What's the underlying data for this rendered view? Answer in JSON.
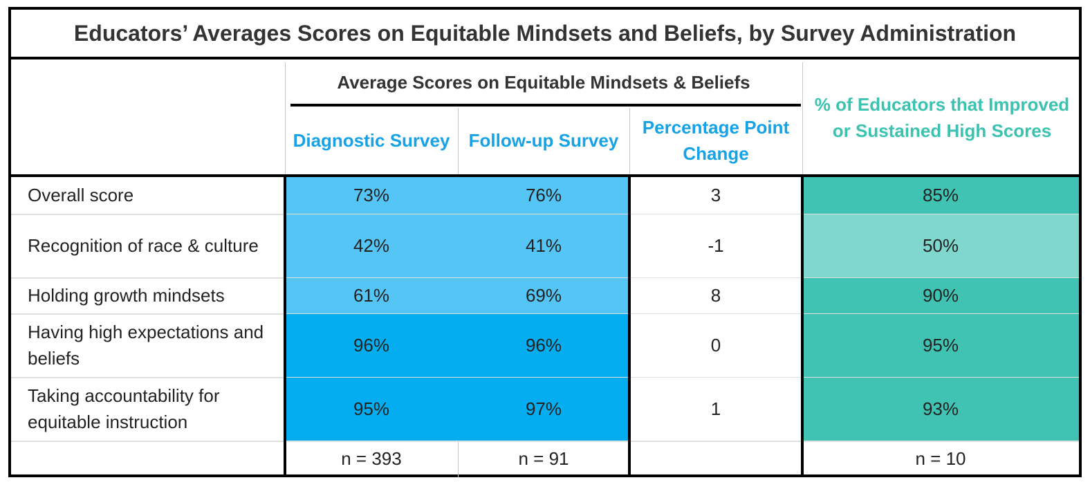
{
  "chart_data": {
    "type": "table",
    "title": "Educators’ Averages Scores on Equitable Mindsets and Beliefs, by Survey Administration",
    "group_header": "Average Scores on Equitable Mindsets & Beliefs",
    "columns": [
      "Diagnostic Survey",
      "Follow-up Survey",
      "Percentage Point Change",
      "% of Educators that Improved or Sustained High Scores"
    ],
    "rows": [
      {
        "label": "Overall score",
        "diagnostic": "73%",
        "followup": "76%",
        "change": "3",
        "improved": "85%"
      },
      {
        "label": "Recognition of race & culture",
        "diagnostic": "42%",
        "followup": "41%",
        "change": "-1",
        "improved": "50%"
      },
      {
        "label": "Holding growth mindsets",
        "diagnostic": "61%",
        "followup": "69%",
        "change": "8",
        "improved": "90%"
      },
      {
        "label": "Having high expectations and beliefs",
        "diagnostic": "96%",
        "followup": "96%",
        "change": "0",
        "improved": "95%"
      },
      {
        "label": "Taking accountability for equitable instruction",
        "diagnostic": "95%",
        "followup": "97%",
        "change": "1",
        "improved": "93%"
      }
    ],
    "sample_sizes": {
      "diagnostic": "n = 393",
      "followup": "n = 91",
      "change": "",
      "improved": "n = 10"
    },
    "colors": {
      "blue_light": "#54c5f5",
      "blue_dark": "#04adef",
      "teal_light": "#7fd7cd",
      "teal": "#40c3b3",
      "header_blue": "#16a2e6",
      "header_teal": "#3cc2b0"
    }
  }
}
